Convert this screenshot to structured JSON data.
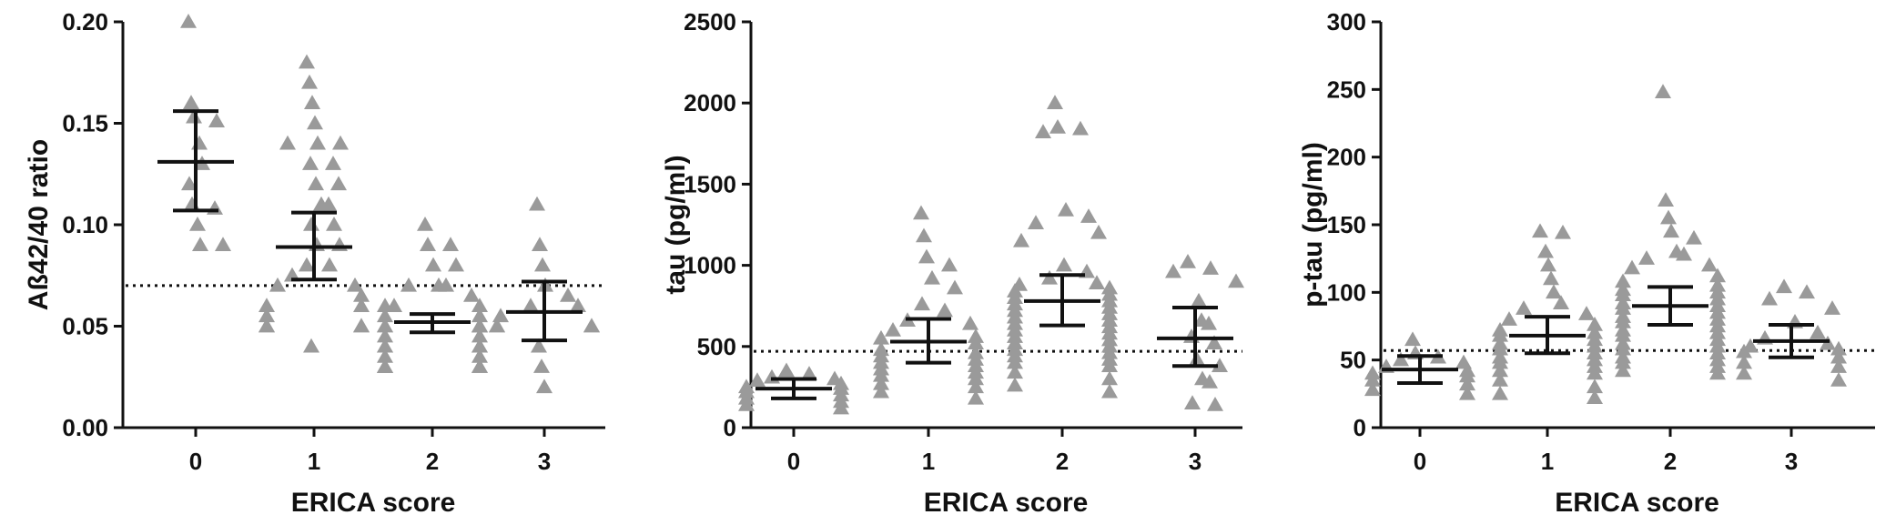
{
  "chart_data": [
    {
      "type": "scatter",
      "xlabel": "ERICA score",
      "ylabel": "Aß42/40 ratio",
      "categories": [
        "0",
        "1",
        "2",
        "3"
      ],
      "ylim": [
        0,
        0.2
      ],
      "yticks": [
        "0.00",
        "0.05",
        "0.10",
        "0.15",
        "0.20"
      ],
      "ytick_values": [
        0,
        0.05,
        0.1,
        0.15,
        0.2
      ],
      "cutoff": 0.07,
      "groups": [
        {
          "category": "0",
          "mean": 0.131,
          "ci": [
            0.107,
            0.156
          ],
          "points": [
            0.2,
            0.16,
            0.153,
            0.151,
            0.14,
            0.13,
            0.12,
            0.11,
            0.108,
            0.1,
            0.09,
            0.09
          ]
        },
        {
          "category": "1",
          "mean": 0.089,
          "ci": [
            0.073,
            0.106
          ],
          "points": [
            0.18,
            0.17,
            0.16,
            0.15,
            0.14,
            0.14,
            0.14,
            0.13,
            0.13,
            0.12,
            0.12,
            0.11,
            0.11,
            0.1,
            0.1,
            0.09,
            0.09,
            0.08,
            0.08,
            0.075,
            0.07,
            0.07,
            0.065,
            0.06,
            0.06,
            0.055,
            0.05,
            0.05,
            0.05,
            0.05,
            0.04
          ]
        },
        {
          "category": "2",
          "mean": 0.052,
          "ci": [
            0.047,
            0.056
          ],
          "points": [
            0.1,
            0.09,
            0.09,
            0.08,
            0.08,
            0.07,
            0.07,
            0.07,
            0.065,
            0.06,
            0.06,
            0.06,
            0.055,
            0.055,
            0.05,
            0.05,
            0.05,
            0.05,
            0.05,
            0.045,
            0.045,
            0.04,
            0.04,
            0.04,
            0.04,
            0.035,
            0.035,
            0.03,
            0.03,
            0.03,
            0.03,
            0.03
          ]
        },
        {
          "category": "3",
          "mean": 0.057,
          "ci": [
            0.043,
            0.072
          ],
          "points": [
            0.11,
            0.09,
            0.08,
            0.07,
            0.065,
            0.06,
            0.06,
            0.055,
            0.05,
            0.05,
            0.05,
            0.05,
            0.04,
            0.03,
            0.02
          ]
        }
      ]
    },
    {
      "type": "scatter",
      "xlabel": "ERICA score",
      "ylabel": "tau (pg/ml)",
      "categories": [
        "0",
        "1",
        "2",
        "3"
      ],
      "ylim": [
        0,
        2500
      ],
      "yticks": [
        "0",
        "500",
        "1000",
        "1500",
        "2000",
        "2500"
      ],
      "ytick_values": [
        0,
        500,
        1000,
        1500,
        2000,
        2500
      ],
      "cutoff": 470,
      "groups": [
        {
          "category": "0",
          "mean": 240,
          "ci": [
            180,
            300
          ],
          "points": [
            350,
            330,
            310,
            300,
            290,
            270,
            250,
            240,
            220,
            200,
            180,
            160,
            140,
            120
          ]
        },
        {
          "category": "1",
          "mean": 530,
          "ci": [
            400,
            670
          ],
          "points": [
            1320,
            1180,
            1050,
            1000,
            920,
            860,
            760,
            720,
            660,
            640,
            600,
            560,
            550,
            520,
            480,
            460,
            440,
            420,
            400,
            380,
            360,
            340,
            320,
            300,
            270,
            250,
            220,
            180
          ]
        },
        {
          "category": "2",
          "mean": 780,
          "ci": [
            630,
            940
          ],
          "points": [
            2000,
            1850,
            1840,
            1820,
            1340,
            1300,
            1260,
            1200,
            1150,
            1000,
            960,
            920,
            890,
            880,
            860,
            840,
            820,
            800,
            780,
            760,
            740,
            720,
            700,
            680,
            660,
            640,
            620,
            600,
            580,
            560,
            540,
            520,
            500,
            480,
            460,
            440,
            420,
            400,
            380,
            340,
            300,
            260,
            220
          ]
        },
        {
          "category": "3",
          "mean": 550,
          "ci": [
            380,
            740
          ],
          "points": [
            1020,
            980,
            960,
            900,
            780,
            660,
            640,
            560,
            520,
            420,
            380,
            300,
            280,
            150,
            140
          ]
        }
      ]
    },
    {
      "type": "scatter",
      "xlabel": "ERICA score",
      "ylabel": "p-tau (pg/ml)",
      "categories": [
        "0",
        "1",
        "2",
        "3"
      ],
      "ylim": [
        0,
        300
      ],
      "yticks": [
        "0",
        "50",
        "100",
        "150",
        "200",
        "250",
        "300"
      ],
      "ytick_values": [
        0,
        50,
        100,
        150,
        200,
        250,
        300
      ],
      "cutoff": 57,
      "groups": [
        {
          "category": "0",
          "mean": 43,
          "ci": [
            33,
            53
          ],
          "points": [
            65,
            55,
            52,
            50,
            48,
            45,
            42,
            40,
            38,
            35,
            32,
            28,
            25
          ]
        },
        {
          "category": "1",
          "mean": 68,
          "ci": [
            55,
            82
          ],
          "points": [
            145,
            144,
            130,
            120,
            110,
            100,
            92,
            88,
            84,
            80,
            76,
            72,
            70,
            68,
            65,
            62,
            60,
            58,
            55,
            52,
            50,
            48,
            45,
            42,
            40,
            35,
            30,
            25,
            22
          ]
        },
        {
          "category": "2",
          "mean": 90,
          "ci": [
            76,
            104
          ],
          "points": [
            248,
            168,
            155,
            145,
            140,
            130,
            128,
            125,
            120,
            118,
            112,
            108,
            105,
            102,
            100,
            98,
            95,
            92,
            90,
            88,
            85,
            82,
            80,
            78,
            75,
            72,
            70,
            68,
            65,
            62,
            60,
            58,
            55,
            52,
            50,
            48,
            45,
            42,
            40
          ]
        },
        {
          "category": "3",
          "mean": 64,
          "ci": [
            52,
            76
          ],
          "points": [
            104,
            100,
            95,
            88,
            78,
            70,
            66,
            62,
            60,
            58,
            56,
            52,
            48,
            45,
            40,
            35
          ]
        }
      ]
    }
  ]
}
